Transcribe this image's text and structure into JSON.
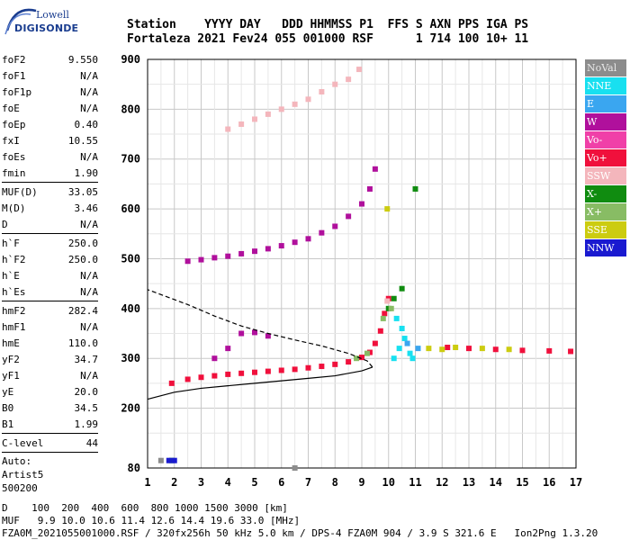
{
  "logo": {
    "line1": "Lowell",
    "line2": "DIGISONDE"
  },
  "header": {
    "line1": "Station    YYYY DAY   DDD HHMMSS P1  FFS S AXN PPS IGA PS",
    "line2": "Fortaleza 2021 Fev24 055 001000 RSF      1 714 100 10+ 11"
  },
  "params": {
    "group1": [
      {
        "k": "foF2",
        "v": "9.550"
      },
      {
        "k": "foF1",
        "v": "N/A"
      },
      {
        "k": "foF1p",
        "v": "N/A"
      },
      {
        "k": "foE",
        "v": "N/A"
      },
      {
        "k": "foEp",
        "v": "0.40"
      },
      {
        "k": "fxI",
        "v": "10.55"
      },
      {
        "k": "foEs",
        "v": "N/A"
      },
      {
        "k": "fmin",
        "v": "1.90"
      }
    ],
    "group2": [
      {
        "k": "MUF(D)",
        "v": "33.05"
      },
      {
        "k": "M(D)",
        "v": "3.46"
      },
      {
        "k": "D",
        "v": "N/A"
      }
    ],
    "group3": [
      {
        "k": "h`F",
        "v": "250.0"
      },
      {
        "k": "h`F2",
        "v": "250.0"
      },
      {
        "k": "h`E",
        "v": "N/A"
      },
      {
        "k": "h`Es",
        "v": "N/A"
      }
    ],
    "group4": [
      {
        "k": "hmF2",
        "v": "282.4"
      },
      {
        "k": "hmF1",
        "v": "N/A"
      },
      {
        "k": "hmE",
        "v": "110.0"
      },
      {
        "k": "yF2",
        "v": "34.7"
      },
      {
        "k": "yF1",
        "v": "N/A"
      },
      {
        "k": "yE",
        "v": "20.0"
      },
      {
        "k": "B0",
        "v": "34.5"
      },
      {
        "k": "B1",
        "v": "1.99"
      }
    ],
    "group5": [
      {
        "k": "C-level",
        "v": "44"
      }
    ],
    "auto_lines": [
      "Auto:",
      "Artist5",
      "500200"
    ]
  },
  "legend": [
    {
      "label": "NoVal",
      "color": "#8c8c8c"
    },
    {
      "label": "NNE",
      "color": "#18e0f0"
    },
    {
      "label": "E",
      "color": "#3aa6f0"
    },
    {
      "label": "W",
      "color": "#b0109c"
    },
    {
      "label": "Vo-",
      "color": "#f040a8"
    },
    {
      "label": "Vo+",
      "color": "#f0103c"
    },
    {
      "label": "SSW",
      "color": "#f4b6bc"
    },
    {
      "label": "X-",
      "color": "#108c10"
    },
    {
      "label": "X+",
      "color": "#88bc64"
    },
    {
      "label": "SSE",
      "color": "#cccc10"
    },
    {
      "label": "NNW",
      "color": "#1a1ad0"
    }
  ],
  "footer": {
    "line1": "D    100  200  400  600  800 1000 1500 3000 [km]",
    "line2": "MUF   9.9 10.0 10.6 11.4 12.6 14.4 19.6 33.0 [MHz]",
    "line3": "FZA0M_2021055001000.RSF / 320fx256h 50 kHz 5.0 km / DPS-4 FZA0M 904 / 3.9 S 321.6 E   Ion2Png 1.3.20"
  },
  "chart_data": {
    "type": "scatter",
    "xlim": [
      1,
      17
    ],
    "ylim": [
      80,
      900
    ],
    "x_ticks": [
      1,
      2,
      3,
      4,
      5,
      6,
      7,
      8,
      9,
      10,
      11,
      12,
      13,
      14,
      15,
      16,
      17
    ],
    "y_ticks": [
      80,
      200,
      300,
      400,
      500,
      600,
      700,
      800,
      900
    ],
    "grid": true,
    "xlabel": "",
    "ylabel": "",
    "series": [
      {
        "name": "Vo+",
        "points": [
          [
            1.9,
            250
          ],
          [
            2.5,
            258
          ],
          [
            3,
            262
          ],
          [
            3.5,
            265
          ],
          [
            4,
            268
          ],
          [
            4.5,
            270
          ],
          [
            5,
            272
          ],
          [
            5.5,
            274
          ],
          [
            6,
            276
          ],
          [
            6.5,
            278
          ],
          [
            7,
            281
          ],
          [
            7.5,
            284
          ],
          [
            8,
            288
          ],
          [
            8.5,
            293
          ],
          [
            9,
            302
          ],
          [
            9.3,
            312
          ],
          [
            9.5,
            330
          ],
          [
            9.7,
            355
          ],
          [
            9.85,
            390
          ],
          [
            10,
            420
          ],
          [
            12.2,
            322
          ],
          [
            13,
            320
          ],
          [
            14,
            318
          ],
          [
            15,
            316
          ],
          [
            16,
            315
          ],
          [
            16.8,
            314
          ]
        ]
      },
      {
        "name": "W",
        "points": [
          [
            2.5,
            495
          ],
          [
            3,
            498
          ],
          [
            3.5,
            502
          ],
          [
            4,
            505
          ],
          [
            4.5,
            510
          ],
          [
            5,
            515
          ],
          [
            5.5,
            520
          ],
          [
            6,
            526
          ],
          [
            6.5,
            533
          ],
          [
            7,
            540
          ],
          [
            7.5,
            552
          ],
          [
            8,
            565
          ],
          [
            8.5,
            585
          ],
          [
            9,
            610
          ],
          [
            9.3,
            640
          ],
          [
            9.5,
            680
          ],
          [
            3.5,
            300
          ],
          [
            4,
            320
          ],
          [
            4.5,
            350
          ],
          [
            5,
            352
          ],
          [
            5.5,
            345
          ]
        ]
      },
      {
        "name": "SSW",
        "points": [
          [
            4,
            760
          ],
          [
            4.5,
            770
          ],
          [
            5,
            780
          ],
          [
            5.5,
            790
          ],
          [
            6,
            800
          ],
          [
            6.5,
            810
          ],
          [
            7,
            820
          ],
          [
            7.5,
            835
          ],
          [
            8,
            850
          ],
          [
            8.5,
            860
          ],
          [
            8.9,
            880
          ],
          [
            9.95,
            415
          ]
        ]
      },
      {
        "name": "NNE",
        "points": [
          [
            10.2,
            300
          ],
          [
            10.4,
            320
          ],
          [
            10.6,
            340
          ],
          [
            10.8,
            310
          ],
          [
            10.5,
            360
          ],
          [
            10.9,
            300
          ],
          [
            10.3,
            380
          ]
        ]
      },
      {
        "name": "X-",
        "points": [
          [
            10,
            400
          ],
          [
            10.2,
            420
          ],
          [
            10.5,
            440
          ],
          [
            11,
            640
          ],
          [
            1.9,
            95
          ]
        ]
      },
      {
        "name": "X+",
        "points": [
          [
            9.8,
            380
          ],
          [
            10.1,
            400
          ],
          [
            8.8,
            300
          ],
          [
            9.2,
            310
          ]
        ]
      },
      {
        "name": "SSE",
        "points": [
          [
            11.5,
            320
          ],
          [
            12,
            318
          ],
          [
            12.5,
            322
          ],
          [
            13.5,
            320
          ],
          [
            14.5,
            318
          ],
          [
            9.95,
            600
          ]
        ]
      },
      {
        "name": "E",
        "points": [
          [
            10.7,
            330
          ],
          [
            11.1,
            320
          ]
        ]
      },
      {
        "name": "NNW",
        "points": [
          [
            1.8,
            95
          ],
          [
            2,
            95
          ]
        ]
      },
      {
        "name": "NoVal",
        "points": [
          [
            1.5,
            95
          ],
          [
            6.5,
            80
          ]
        ]
      }
    ],
    "profile_curve": [
      [
        1,
        218
      ],
      [
        1.5,
        225
      ],
      [
        2,
        232
      ],
      [
        3,
        240
      ],
      [
        4,
        245
      ],
      [
        5,
        250
      ],
      [
        6,
        255
      ],
      [
        7,
        260
      ],
      [
        8,
        265
      ],
      [
        9,
        275
      ],
      [
        9.4,
        282.4
      ],
      [
        9.2,
        295
      ],
      [
        8.5,
        310
      ],
      [
        7.5,
        325
      ],
      [
        6.5,
        337
      ],
      [
        5.5,
        350
      ],
      [
        4.5,
        365
      ],
      [
        3.5,
        385
      ],
      [
        2.5,
        408
      ],
      [
        1.5,
        428
      ],
      [
        1,
        438
      ]
    ]
  }
}
